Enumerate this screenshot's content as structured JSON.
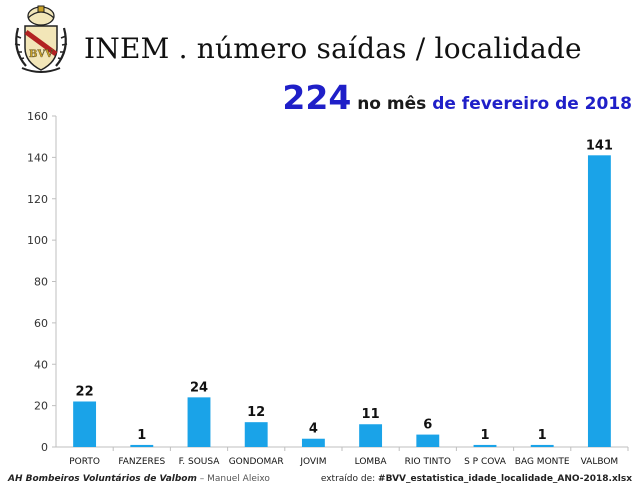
{
  "header": {
    "logo_text": "BVV",
    "title": "INEM . número saídas / localidade",
    "total": "224",
    "subtitle_mid": " no mês ",
    "subtitle_period": "de fevereiro de 2018"
  },
  "colors": {
    "bar": "#1aa3e8",
    "accent_blue": "#1f1fc8",
    "grid": "#d9d9d9",
    "axis": "#bfbfbf",
    "logo_gold": "#c9a227",
    "logo_red": "#b22222"
  },
  "chart_data": {
    "type": "bar",
    "title": "INEM . número saídas / localidade",
    "xlabel": "",
    "ylabel": "",
    "ylim": [
      0,
      160
    ],
    "yticks": [
      0,
      20,
      40,
      60,
      80,
      100,
      120,
      140,
      160
    ],
    "grid": false,
    "categories": [
      "PORTO",
      "FANZERES",
      "F. SOUSA",
      "GONDOMAR",
      "JOVIM",
      "LOMBA",
      "RIO TINTO",
      "S P COVA",
      "BAG MONTE",
      "VALBOM"
    ],
    "values": [
      22,
      1,
      24,
      12,
      4,
      11,
      6,
      1,
      1,
      141
    ]
  },
  "footer": {
    "org": "AH Bombeiros Voluntários de Valbom",
    "author": " – Manuel Aleixo",
    "source_label": "extraído de: ",
    "source_file": "#BVV_estatistica_idade_localidade_ANO-2018.xlsx"
  }
}
